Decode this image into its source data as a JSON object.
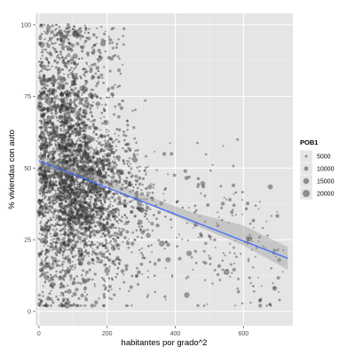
{
  "chart_data": {
    "type": "scatter",
    "xlabel": "habitantes por grado^2",
    "ylabel": "% viviendas con auto",
    "xlim": [
      -10,
      745
    ],
    "ylim": [
      -5,
      104
    ],
    "x_ticks": [
      0,
      200,
      400,
      600
    ],
    "y_ticks": [
      0,
      25,
      50,
      75,
      100
    ],
    "grid": true,
    "legend_placement": "right",
    "colors": {
      "panel_background": "#e5e5e5",
      "grid_major": "#ffffff",
      "points": "#333333",
      "trend_line": "#3366ff",
      "confidence_band": "#999999"
    },
    "size_legend": {
      "title": "POB1",
      "values": [
        5000,
        10000,
        15000,
        20000
      ]
    },
    "points_summary": {
      "approx_count": 4000,
      "dense_region_x": [
        0,
        330
      ],
      "dense_region_y": [
        15,
        100
      ],
      "note_visible": false
    },
    "trend_line": {
      "method": "linear",
      "x": [
        0,
        730
      ],
      "y": [
        52.5,
        18.5
      ]
    },
    "confidence_band": {
      "x": [
        0,
        150,
        300,
        450,
        600,
        730
      ],
      "lower": [
        50.5,
        46.0,
        38.5,
        30.5,
        23.0,
        14.5
      ],
      "upper": [
        54.5,
        48.5,
        41.0,
        34.5,
        30.0,
        22.5
      ]
    }
  }
}
